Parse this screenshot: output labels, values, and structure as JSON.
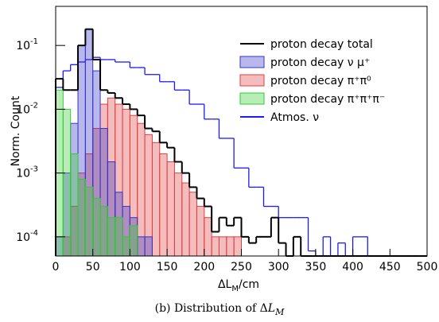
{
  "chart_data": {
    "type": "histogram",
    "log_y": true,
    "y_label": "Norm. Count",
    "x_label": {
      "main": "ΔL",
      "sub": "M",
      "unit": "/cm"
    },
    "caption": {
      "text": "(b) Distribution of Δ",
      "var": "L",
      "sub": "M"
    },
    "bins": [
      0,
      10,
      20,
      30,
      40,
      50,
      60,
      70,
      80,
      90,
      100,
      110,
      120,
      130,
      140,
      150,
      160,
      170,
      180,
      190,
      200,
      210,
      220,
      230,
      240,
      250,
      260,
      270,
      280,
      290,
      300,
      310,
      320,
      330,
      340,
      350,
      360,
      370,
      380,
      390,
      400,
      410,
      420,
      430,
      440,
      450,
      460,
      470,
      480,
      490,
      500
    ],
    "xlim": [
      0,
      500
    ],
    "xticks": [
      0,
      50,
      100,
      150,
      200,
      250,
      300,
      350,
      400,
      450,
      500
    ],
    "ylim": [
      5e-05,
      0.41
    ],
    "yticks": [
      {
        "value": 0.0001,
        "label": "10",
        "exponent": "-4"
      },
      {
        "value": 0.001,
        "label": "10",
        "exponent": "-3"
      },
      {
        "value": 0.01,
        "label": "10",
        "exponent": "-2"
      },
      {
        "value": 0.1,
        "label": "10",
        "exponent": "-1"
      }
    ],
    "series": [
      {
        "name": "proton decay total",
        "color": "#000000",
        "style": "step",
        "values": [
          0.03,
          0.02,
          0.02,
          0.1,
          0.18,
          0.06,
          0.02,
          0.018,
          0.015,
          0.012,
          0.01,
          0.008,
          0.005,
          0.0045,
          0.003,
          0.0025,
          0.0015,
          0.001,
          0.0006,
          0.0004,
          0.0003,
          0.00012,
          0.0002,
          0.00015,
          0.0002,
          0.0001,
          8e-05,
          0.0001,
          0.0001,
          0.0002,
          8e-05,
          0,
          0.0001,
          0,
          0,
          0,
          0,
          0,
          0,
          0,
          0,
          0,
          0,
          0,
          0,
          0,
          0,
          0,
          0,
          0
        ]
      },
      {
        "name": "proton decay ν μ⁺",
        "color": "#3333cc",
        "style": "fill",
        "values": [
          0.0001,
          0.001,
          0.006,
          0.1,
          0.18,
          0.04,
          0.005,
          0.0015,
          0.0005,
          0.0003,
          0.0002,
          0.0001,
          0.0001,
          0,
          0,
          0,
          0,
          0,
          0,
          0,
          0,
          0,
          0,
          0,
          0,
          0,
          0,
          0,
          0,
          0,
          0,
          0,
          0,
          0,
          0,
          0,
          0,
          0,
          0,
          0,
          0,
          0,
          0,
          0,
          0,
          0,
          0,
          0,
          0,
          0
        ]
      },
      {
        "name": "proton decay π⁺π⁰",
        "color": "#e04040",
        "style": "fill",
        "values": [
          0,
          0.0001,
          0.0003,
          0.001,
          0.002,
          0.005,
          0.012,
          0.015,
          0.012,
          0.01,
          0.008,
          0.006,
          0.004,
          0.003,
          0.002,
          0.0015,
          0.001,
          0.0007,
          0.0005,
          0.0003,
          0.0002,
          0.0001,
          0.0001,
          0.0001,
          0.0001,
          0,
          0,
          0,
          0,
          0,
          0,
          0,
          0,
          0,
          0,
          0,
          0,
          0,
          0,
          0,
          0,
          0,
          0,
          0,
          0,
          0,
          0,
          0,
          0,
          0
        ]
      },
      {
        "name": "proton decay π⁺π⁺π⁻",
        "color": "#33cc33",
        "style": "fill",
        "values": [
          0.02,
          0.01,
          0.002,
          0.0008,
          0.0006,
          0.0004,
          0.0003,
          0.0002,
          0.0002,
          0.0001,
          0.00015,
          0,
          0,
          0,
          0,
          0,
          0,
          0,
          0,
          0,
          0,
          0,
          0,
          0,
          0,
          0,
          0,
          0,
          0,
          0,
          0,
          0,
          0,
          0,
          0,
          0,
          0,
          0,
          0,
          0,
          0,
          0,
          0,
          0,
          0,
          0,
          0,
          0,
          0,
          0
        ]
      },
      {
        "name": "Atmos. ν",
        "color": "#1a1aff",
        "style": "step",
        "values": [
          0.022,
          0.04,
          0.05,
          0.055,
          0.06,
          0.065,
          0.06,
          0.06,
          0.055,
          0.055,
          0.045,
          0.045,
          0.035,
          0.035,
          0.027,
          0.027,
          0.02,
          0.02,
          0.012,
          0.012,
          0.007,
          0.007,
          0.0035,
          0.0035,
          0.0012,
          0.0012,
          0.0006,
          0.0006,
          0.0003,
          0.0003,
          0.0002,
          0.0002,
          0.0002,
          0.0002,
          6e-05,
          0,
          0.0001,
          0,
          8e-05,
          0,
          0.0001,
          0.0001,
          0,
          0,
          0,
          0,
          0,
          0,
          0,
          0
        ]
      }
    ]
  }
}
